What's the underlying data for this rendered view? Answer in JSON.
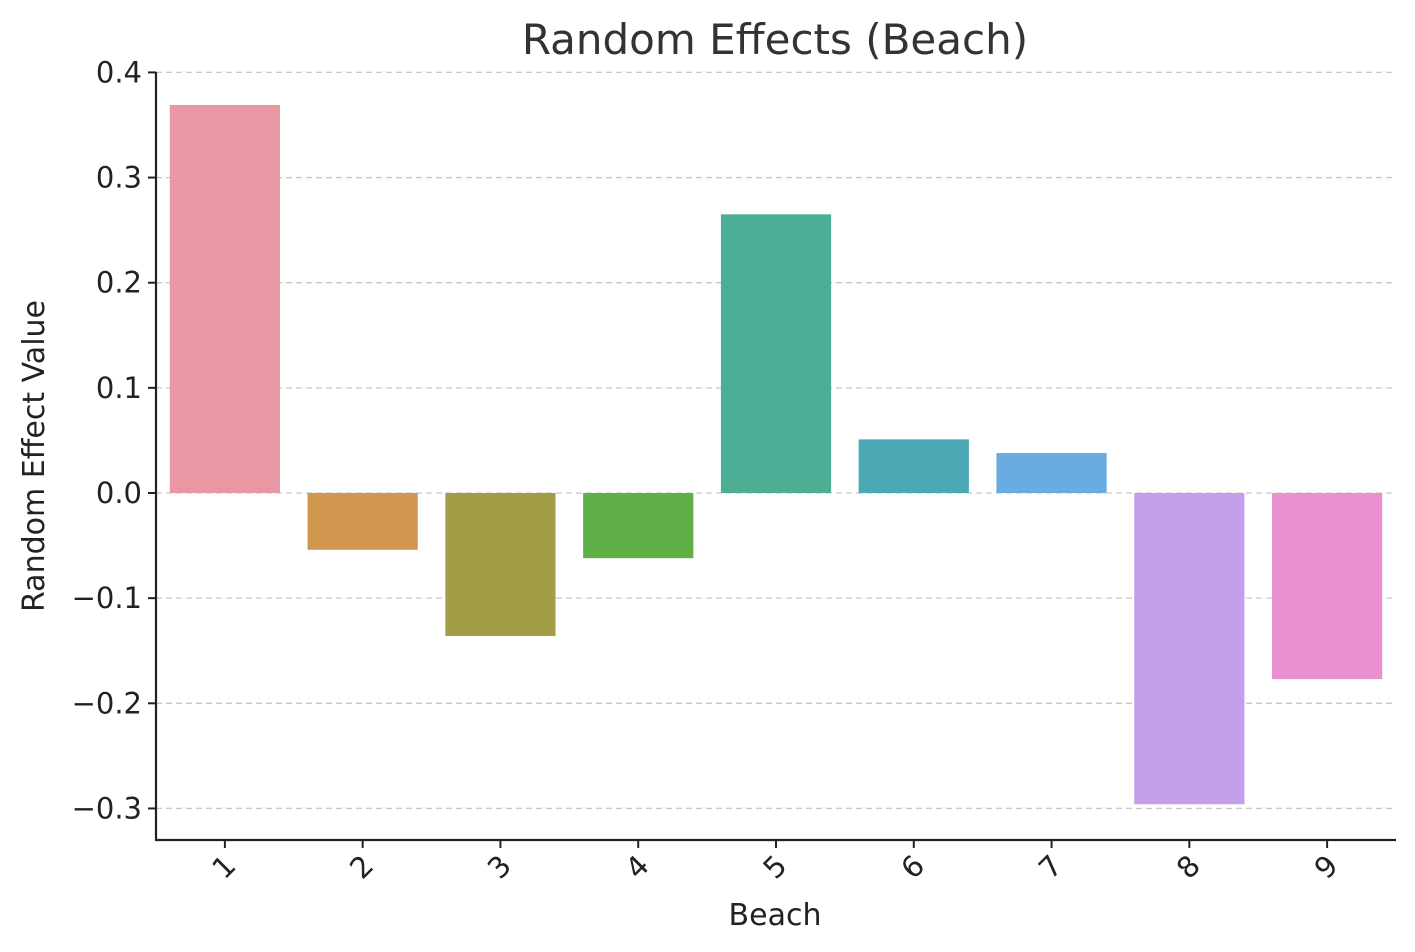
{
  "chart_data": {
    "type": "bar",
    "title": "Random Effects (Beach)",
    "xlabel": "Beach",
    "ylabel": "Random Effect Value",
    "categories": [
      "1",
      "2",
      "3",
      "4",
      "5",
      "6",
      "7",
      "8",
      "9"
    ],
    "values": [
      0.369,
      -0.054,
      -0.136,
      -0.062,
      0.265,
      0.051,
      0.038,
      -0.296,
      -0.177
    ],
    "colors": [
      "#e997a3",
      "#d0964d",
      "#a39e45",
      "#60af47",
      "#4bae95",
      "#4ba9b5",
      "#6aace2",
      "#c59ee9",
      "#e98fd0"
    ],
    "ylim": [
      -0.33,
      0.405
    ],
    "yticks": [
      0.4,
      0.3,
      0.2,
      0.1,
      0.0,
      -0.1,
      -0.2,
      -0.3
    ],
    "ytick_labels": [
      "0.4",
      "0.3",
      "0.2",
      "0.1",
      "0.0",
      "−0.1",
      "−0.2",
      "−0.3"
    ],
    "grid": true,
    "grid_axis": "y"
  }
}
